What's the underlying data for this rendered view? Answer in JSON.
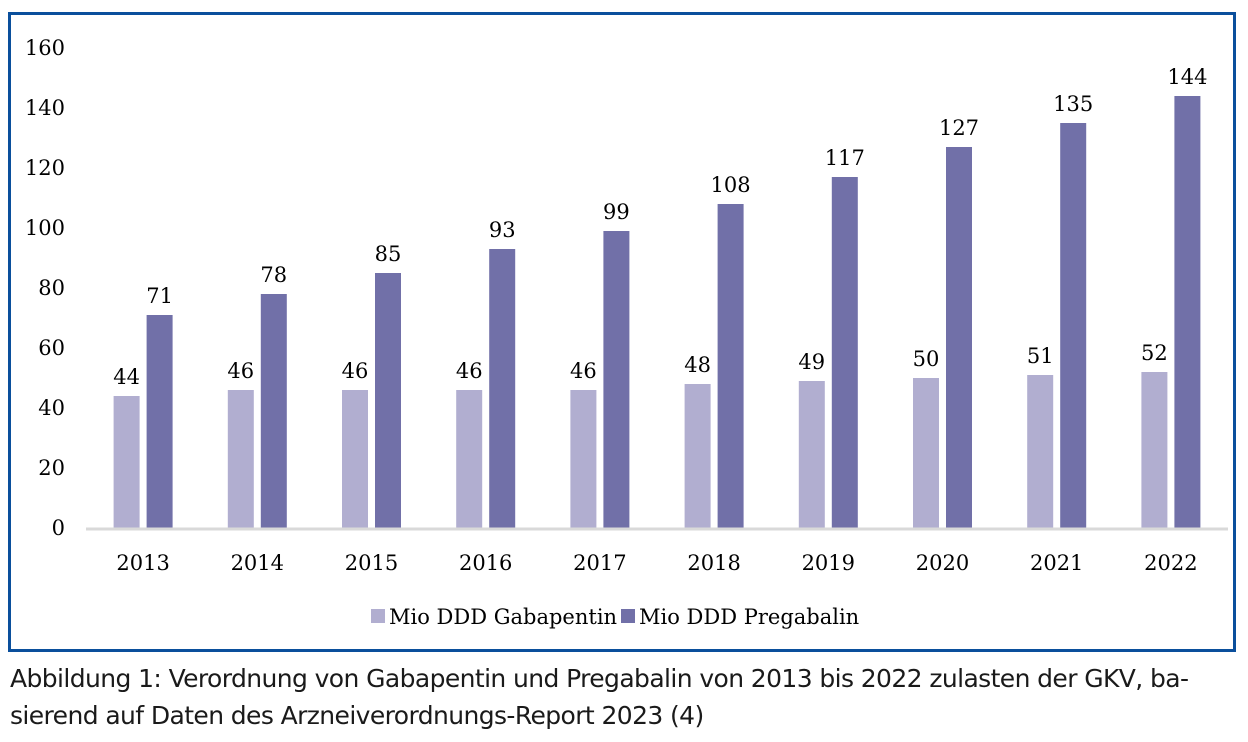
{
  "colors": {
    "frame": "#0a4f9c",
    "gabapentin": "#b1aed0",
    "pregabalin": "#7170a8",
    "axis": "#d9d9d9"
  },
  "chart_data": {
    "type": "bar",
    "title": "",
    "xlabel": "",
    "ylabel": "",
    "ylim": [
      0,
      160
    ],
    "yticks": [
      0,
      20,
      40,
      60,
      80,
      100,
      120,
      140,
      160
    ],
    "grid": false,
    "legend_position": "bottom",
    "categories": [
      "2013",
      "2014",
      "2015",
      "2016",
      "2017",
      "2018",
      "2019",
      "2020",
      "2021",
      "2022"
    ],
    "series": [
      {
        "name": "Mio DDD Gabapentin",
        "values": [
          44,
          46,
          46,
          46,
          46,
          48,
          49,
          50,
          51,
          52
        ]
      },
      {
        "name": "Mio DDD Pregabalin",
        "values": [
          71,
          78,
          85,
          93,
          99,
          108,
          117,
          127,
          135,
          144
        ]
      }
    ],
    "data_labels": true
  },
  "caption": {
    "line1": "Abbildung 1: Verordnung von Gabapentin und Pregabalin von 2013 bis 2022 zulasten der GKV, ba-",
    "line2": "sierend auf Daten des Arzneiverordnungs-Report 2023 (4)"
  }
}
